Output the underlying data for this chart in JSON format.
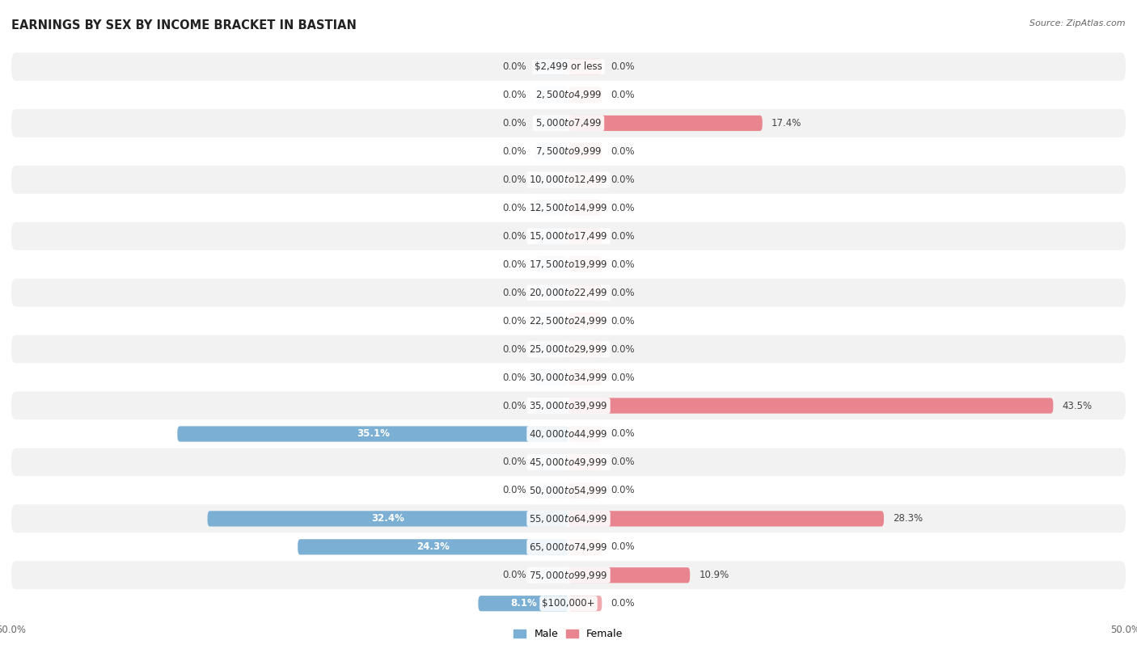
{
  "title": "EARNINGS BY SEX BY INCOME BRACKET IN BASTIAN",
  "source": "Source: ZipAtlas.com",
  "categories": [
    "$2,499 or less",
    "$2,500 to $4,999",
    "$5,000 to $7,499",
    "$7,500 to $9,999",
    "$10,000 to $12,499",
    "$12,500 to $14,999",
    "$15,000 to $17,499",
    "$17,500 to $19,999",
    "$20,000 to $22,499",
    "$22,500 to $24,999",
    "$25,000 to $29,999",
    "$30,000 to $34,999",
    "$35,000 to $39,999",
    "$40,000 to $44,999",
    "$45,000 to $49,999",
    "$50,000 to $54,999",
    "$55,000 to $64,999",
    "$65,000 to $74,999",
    "$75,000 to $99,999",
    "$100,000+"
  ],
  "male_values": [
    0.0,
    0.0,
    0.0,
    0.0,
    0.0,
    0.0,
    0.0,
    0.0,
    0.0,
    0.0,
    0.0,
    0.0,
    0.0,
    35.1,
    0.0,
    0.0,
    32.4,
    24.3,
    0.0,
    8.1
  ],
  "female_values": [
    0.0,
    0.0,
    17.4,
    0.0,
    0.0,
    0.0,
    0.0,
    0.0,
    0.0,
    0.0,
    0.0,
    0.0,
    43.5,
    0.0,
    0.0,
    0.0,
    28.3,
    0.0,
    10.9,
    0.0
  ],
  "male_color": "#7bafd4",
  "female_color": "#e8858f",
  "male_label": "Male",
  "female_label": "Female",
  "xlim": 50.0,
  "bar_height": 0.55,
  "row_color_even": "#f2f2f2",
  "row_color_odd": "#ffffff",
  "title_fontsize": 10.5,
  "label_fontsize": 8.5,
  "tick_fontsize": 8.5,
  "source_fontsize": 8,
  "cat_label_fontsize": 8.5
}
